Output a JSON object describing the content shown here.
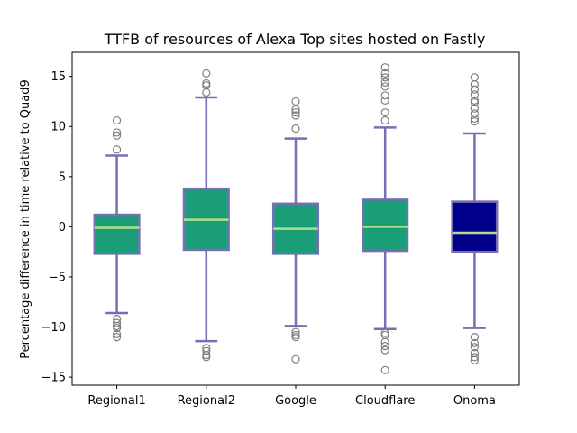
{
  "chart_data": {
    "type": "box",
    "title": "TTFB of resources of Alexa Top sites hosted on Fastly",
    "xlabel": "",
    "ylabel": "Percentage difference in time relative to Quad9",
    "ylim": [
      -15.8,
      17.4
    ],
    "yticks": [
      -15,
      -10,
      -5,
      0,
      5,
      10,
      15
    ],
    "categories": [
      "Regional1",
      "Regional2",
      "Google",
      "Cloudflare",
      "Onoma"
    ],
    "grid": false,
    "colors": {
      "box_outline": "#7570b3",
      "median": "#b2df8a",
      "outlier": "#7f7f7f"
    },
    "boxes": [
      {
        "name": "Regional1",
        "whisker_low": -8.6,
        "q1": -2.7,
        "median": -0.1,
        "q3": 1.2,
        "whisker_high": 7.1,
        "fill": "#1b9e77",
        "outliers": [
          10.6,
          9.4,
          9.1,
          7.7,
          -9.2,
          -9.6,
          -9.9,
          -10.1,
          -10.7,
          -11.0
        ]
      },
      {
        "name": "Regional2",
        "whisker_low": -11.4,
        "q1": -2.3,
        "median": 0.7,
        "q3": 3.8,
        "whisker_high": 12.9,
        "fill": "#1b9e77",
        "outliers": [
          15.3,
          14.3,
          14.1,
          13.4,
          -12.1,
          -12.4,
          -12.8,
          -13.0
        ]
      },
      {
        "name": "Google",
        "whisker_low": -9.9,
        "q1": -2.7,
        "median": -0.2,
        "q3": 2.3,
        "whisker_high": 8.8,
        "fill": "#1b9e77",
        "outliers": [
          12.5,
          11.7,
          11.4,
          11.1,
          9.8,
          -10.5,
          -10.8,
          -11.0,
          -13.2
        ]
      },
      {
        "name": "Cloudflare",
        "whisker_low": -10.2,
        "q1": -2.4,
        "median": 0.0,
        "q3": 2.7,
        "whisker_high": 9.9,
        "fill": "#1b9e77",
        "outliers": [
          15.9,
          15.3,
          14.9,
          14.4,
          14.0,
          13.1,
          12.6,
          11.4,
          10.6,
          -10.6,
          -10.8,
          -11.5,
          -11.9,
          -12.3,
          -14.3
        ]
      },
      {
        "name": "Onoma",
        "whisker_low": -10.1,
        "q1": -2.5,
        "median": -0.6,
        "q3": 2.5,
        "whisker_high": 9.3,
        "fill": "#00008b",
        "outliers": [
          14.9,
          14.2,
          13.7,
          13.2,
          12.6,
          12.4,
          11.8,
          11.3,
          10.8,
          10.5,
          -11.0,
          -11.6,
          -12.0,
          -12.6,
          -13.0,
          -13.3
        ]
      }
    ]
  }
}
